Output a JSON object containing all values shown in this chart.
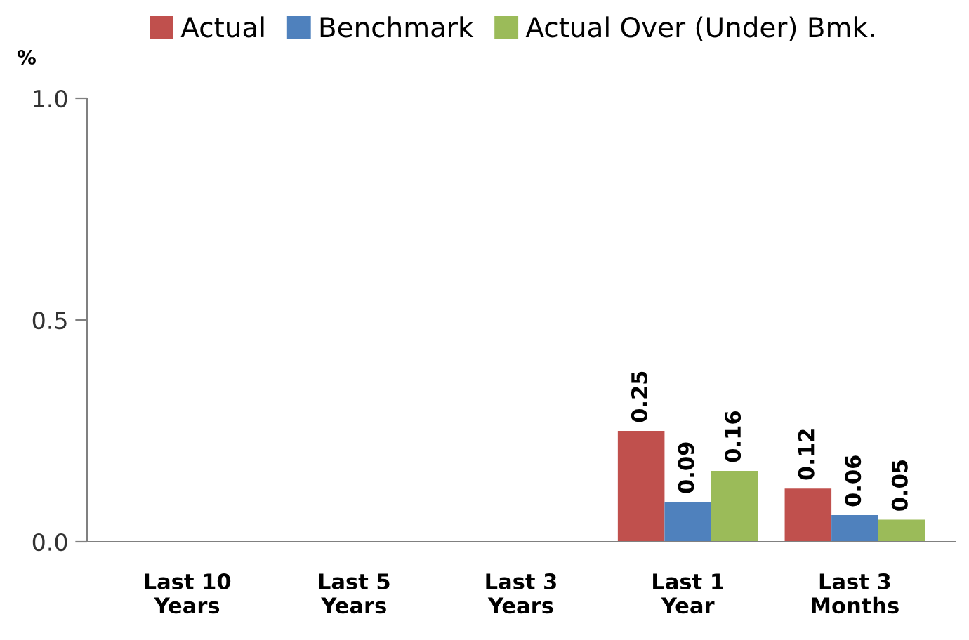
{
  "chart_data": {
    "type": "bar",
    "ylabel": "%",
    "categories": [
      "Last 10\nYears",
      "Last 5\nYears",
      "Last 3\nYears",
      "Last 1\nYear",
      "Last 3\nMonths"
    ],
    "series": [
      {
        "name": "Actual",
        "color": "#c0504d",
        "values": [
          null,
          null,
          null,
          0.25,
          0.12
        ]
      },
      {
        "name": "Benchmark",
        "color": "#4f81bd",
        "values": [
          null,
          null,
          null,
          0.09,
          0.06
        ]
      },
      {
        "name": "Actual Over (Under) Bmk.",
        "color": "#9bbb59",
        "values": [
          null,
          null,
          null,
          0.16,
          0.05
        ]
      }
    ],
    "ylim": [
      0,
      1
    ],
    "yticks": [
      {
        "value": 0,
        "label": "0.0"
      },
      {
        "value": 0.5,
        "label": "0.5"
      },
      {
        "value": 1,
        "label": "1.0"
      }
    ],
    "data_labels": true,
    "grid": false,
    "legend": "top"
  }
}
